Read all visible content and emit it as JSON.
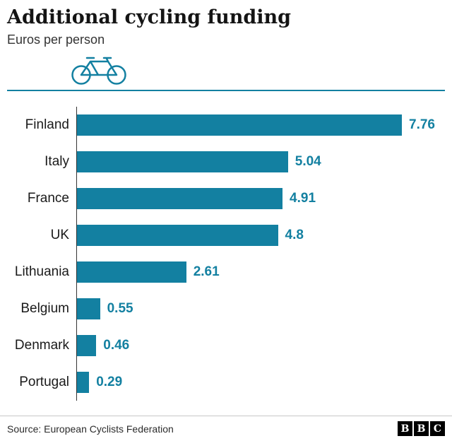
{
  "header": {
    "title": "Additional cycling funding",
    "subtitle": "Euros per person"
  },
  "footer": {
    "source": "Source: European Cyclists Federation",
    "logo_letters": [
      "B",
      "B",
      "C"
    ]
  },
  "icons": {
    "bicycle": "bicycle-icon"
  },
  "colors": {
    "bar": "#1380a1",
    "value_text": "#1380a1",
    "rule": "#1380a1",
    "axis": "#333333",
    "label_text": "#1a1a1a"
  },
  "chart_data": {
    "type": "bar",
    "orientation": "horizontal",
    "title": "Additional cycling funding",
    "xlabel": "Euros per person",
    "categories": [
      "Finland",
      "Italy",
      "France",
      "UK",
      "Lithuania",
      "Belgium",
      "Denmark",
      "Portugal"
    ],
    "values": [
      7.76,
      5.04,
      4.91,
      4.8,
      2.61,
      0.55,
      0.46,
      0.29
    ],
    "value_labels": [
      "7.76",
      "5.04",
      "4.91",
      "4.8",
      "2.61",
      "0.55",
      "0.46",
      "0.29"
    ],
    "xlim": [
      0,
      8
    ],
    "grid": false,
    "legend": false,
    "bar_color": "#1380a1"
  }
}
